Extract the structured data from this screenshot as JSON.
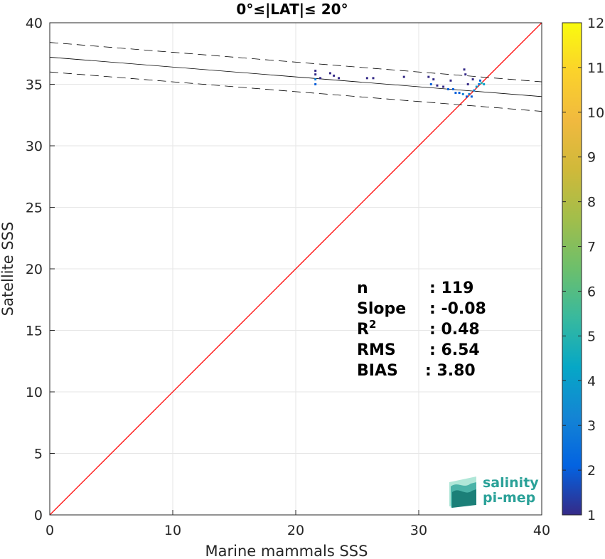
{
  "chart_data": {
    "type": "scatter",
    "title": "0°≤|LAT|≤ 20°",
    "xlabel": "Marine mammals SSS",
    "ylabel": "Satellite SSS",
    "xlim": [
      0,
      40
    ],
    "ylim": [
      0,
      40
    ],
    "xticks": [
      0,
      10,
      20,
      30,
      40
    ],
    "yticks": [
      0,
      5,
      10,
      15,
      20,
      25,
      30,
      35,
      40
    ],
    "grid": true,
    "identity_line": {
      "color": "#ff0000",
      "from": [
        0,
        0
      ],
      "to": [
        40,
        40
      ]
    },
    "fit_line": {
      "color": "#000000",
      "intercept": 37.2,
      "slope": -0.08
    },
    "fit_bounds": {
      "color": "#000000",
      "style": "dashed",
      "offset": 1.2
    },
    "colorbar": {
      "range": [
        1,
        12
      ],
      "ticks": [
        1,
        2,
        3,
        4,
        5,
        6,
        7,
        8,
        9,
        10,
        11,
        12
      ],
      "colormap": "parula"
    },
    "points": [
      {
        "x": 21.6,
        "y": 35.4,
        "count": 3
      },
      {
        "x": 21.6,
        "y": 35.8,
        "count": 1
      },
      {
        "x": 21.6,
        "y": 36.1,
        "count": 1
      },
      {
        "x": 21.6,
        "y": 35.0,
        "count": 2
      },
      {
        "x": 22.0,
        "y": 35.5,
        "count": 1
      },
      {
        "x": 22.8,
        "y": 35.9,
        "count": 1
      },
      {
        "x": 23.1,
        "y": 35.7,
        "count": 1
      },
      {
        "x": 23.5,
        "y": 35.5,
        "count": 1
      },
      {
        "x": 25.8,
        "y": 35.5,
        "count": 1
      },
      {
        "x": 26.3,
        "y": 35.5,
        "count": 1
      },
      {
        "x": 28.8,
        "y": 35.6,
        "count": 1
      },
      {
        "x": 30.8,
        "y": 35.6,
        "count": 1
      },
      {
        "x": 31.0,
        "y": 35.0,
        "count": 2
      },
      {
        "x": 31.2,
        "y": 35.4,
        "count": 1
      },
      {
        "x": 31.5,
        "y": 34.9,
        "count": 1
      },
      {
        "x": 32.0,
        "y": 34.8,
        "count": 1
      },
      {
        "x": 32.4,
        "y": 34.6,
        "count": 2
      },
      {
        "x": 32.6,
        "y": 35.3,
        "count": 1
      },
      {
        "x": 32.8,
        "y": 34.6,
        "count": 2
      },
      {
        "x": 33.0,
        "y": 34.3,
        "count": 2
      },
      {
        "x": 33.3,
        "y": 34.3,
        "count": 2
      },
      {
        "x": 33.6,
        "y": 34.2,
        "count": 3
      },
      {
        "x": 33.7,
        "y": 36.2,
        "count": 1
      },
      {
        "x": 33.8,
        "y": 35.8,
        "count": 1
      },
      {
        "x": 33.9,
        "y": 34.0,
        "count": 2
      },
      {
        "x": 34.0,
        "y": 35.0,
        "count": 1
      },
      {
        "x": 34.1,
        "y": 34.2,
        "count": 3
      },
      {
        "x": 34.3,
        "y": 34.0,
        "count": 2
      },
      {
        "x": 34.4,
        "y": 35.4,
        "count": 1
      },
      {
        "x": 34.5,
        "y": 34.5,
        "count": 3
      },
      {
        "x": 34.7,
        "y": 34.8,
        "count": 4
      },
      {
        "x": 34.9,
        "y": 35.0,
        "count": 3
      },
      {
        "x": 35.0,
        "y": 35.3,
        "count": 2
      },
      {
        "x": 35.1,
        "y": 35.1,
        "count": 5
      },
      {
        "x": 35.3,
        "y": 35.0,
        "count": 4
      }
    ],
    "stats": [
      {
        "label": "n",
        "value": ": 119"
      },
      {
        "label": "Slope",
        "value": ": -0.08"
      },
      {
        "label": "R",
        "sup": "2",
        "value": ": 0.48"
      },
      {
        "label": "RMS",
        "value": ": 6.54"
      },
      {
        "label": "BIAS",
        "value": ": 3.80"
      }
    ]
  },
  "logo": {
    "line1": "salinity",
    "line2": "pi-mep",
    "color": "#2aa198"
  }
}
